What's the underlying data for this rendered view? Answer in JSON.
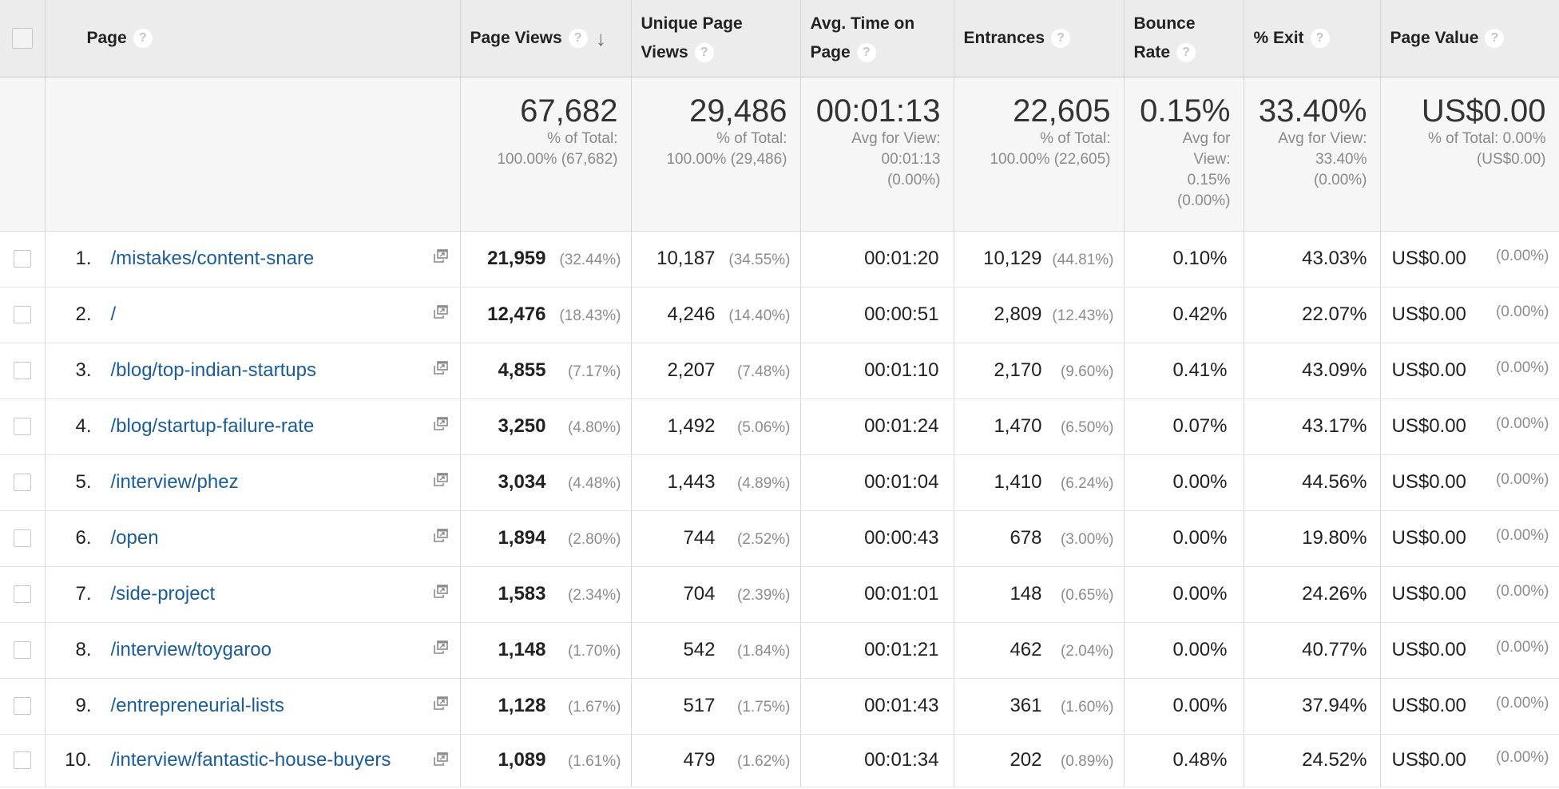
{
  "header": {
    "page": "Page",
    "page_views": "Page Views",
    "unique_page_views": "Unique Page Views",
    "avg_time_on_page": "Avg. Time on Page",
    "entrances": "Entrances",
    "bounce_rate": "Bounce Rate",
    "exit": "% Exit",
    "page_value": "Page Value",
    "help_icon_glyph": "?",
    "sort_arrow_glyph": "↓"
  },
  "totals": {
    "page_views": {
      "value": "67,682",
      "line1": "% of Total:",
      "line2": "100.00% (67,682)"
    },
    "unique_page_views": {
      "value": "29,486",
      "line1": "% of Total:",
      "line2": "100.00% (29,486)"
    },
    "avg_time_on_page": {
      "value": "00:01:13",
      "line1": "Avg for View:",
      "line2": "00:01:13",
      "line3": "(0.00%)"
    },
    "entrances": {
      "value": "22,605",
      "line1": "% of Total:",
      "line2": "100.00% (22,605)"
    },
    "bounce_rate": {
      "value": "0.15%",
      "line1": "Avg for",
      "line2": "View:",
      "line3": "0.15%",
      "line4": "(0.00%)"
    },
    "exit": {
      "value": "33.40%",
      "line1": "Avg for View:",
      "line2": "33.40%",
      "line3": "(0.00%)"
    },
    "page_value": {
      "value": "US$0.00",
      "line1": "% of Total: 0.00%",
      "line2": "(US$0.00)"
    }
  },
  "rows": [
    {
      "rank": "1.",
      "page": "/mistakes/content-snare",
      "pv": "21,959",
      "pv_pct": "(32.44%)",
      "upv": "10,187",
      "upv_pct": "(34.55%)",
      "avg": "00:01:20",
      "ent": "10,129",
      "ent_pct": "(44.81%)",
      "bounce": "0.10%",
      "exit": "43.03%",
      "value": "US$0.00",
      "value_pct": "(0.00%)"
    },
    {
      "rank": "2.",
      "page": "/",
      "pv": "12,476",
      "pv_pct": "(18.43%)",
      "upv": "4,246",
      "upv_pct": "(14.40%)",
      "avg": "00:00:51",
      "ent": "2,809",
      "ent_pct": "(12.43%)",
      "bounce": "0.42%",
      "exit": "22.07%",
      "value": "US$0.00",
      "value_pct": "(0.00%)"
    },
    {
      "rank": "3.",
      "page": "/blog/top-indian-startups",
      "pv": "4,855",
      "pv_pct": "(7.17%)",
      "upv": "2,207",
      "upv_pct": "(7.48%)",
      "avg": "00:01:10",
      "ent": "2,170",
      "ent_pct": "(9.60%)",
      "bounce": "0.41%",
      "exit": "43.09%",
      "value": "US$0.00",
      "value_pct": "(0.00%)"
    },
    {
      "rank": "4.",
      "page": "/blog/startup-failure-rate",
      "pv": "3,250",
      "pv_pct": "(4.80%)",
      "upv": "1,492",
      "upv_pct": "(5.06%)",
      "avg": "00:01:24",
      "ent": "1,470",
      "ent_pct": "(6.50%)",
      "bounce": "0.07%",
      "exit": "43.17%",
      "value": "US$0.00",
      "value_pct": "(0.00%)"
    },
    {
      "rank": "5.",
      "page": "/interview/phez",
      "pv": "3,034",
      "pv_pct": "(4.48%)",
      "upv": "1,443",
      "upv_pct": "(4.89%)",
      "avg": "00:01:04",
      "ent": "1,410",
      "ent_pct": "(6.24%)",
      "bounce": "0.00%",
      "exit": "44.56%",
      "value": "US$0.00",
      "value_pct": "(0.00%)"
    },
    {
      "rank": "6.",
      "page": "/open",
      "pv": "1,894",
      "pv_pct": "(2.80%)",
      "upv": "744",
      "upv_pct": "(2.52%)",
      "avg": "00:00:43",
      "ent": "678",
      "ent_pct": "(3.00%)",
      "bounce": "0.00%",
      "exit": "19.80%",
      "value": "US$0.00",
      "value_pct": "(0.00%)"
    },
    {
      "rank": "7.",
      "page": "/side-project",
      "pv": "1,583",
      "pv_pct": "(2.34%)",
      "upv": "704",
      "upv_pct": "(2.39%)",
      "avg": "00:01:01",
      "ent": "148",
      "ent_pct": "(0.65%)",
      "bounce": "0.00%",
      "exit": "24.26%",
      "value": "US$0.00",
      "value_pct": "(0.00%)"
    },
    {
      "rank": "8.",
      "page": "/interview/toygaroo",
      "pv": "1,148",
      "pv_pct": "(1.70%)",
      "upv": "542",
      "upv_pct": "(1.84%)",
      "avg": "00:01:21",
      "ent": "462",
      "ent_pct": "(2.04%)",
      "bounce": "0.00%",
      "exit": "40.77%",
      "value": "US$0.00",
      "value_pct": "(0.00%)"
    },
    {
      "rank": "9.",
      "page": "/entrepreneurial-lists",
      "pv": "1,128",
      "pv_pct": "(1.67%)",
      "upv": "517",
      "upv_pct": "(1.75%)",
      "avg": "00:01:43",
      "ent": "361",
      "ent_pct": "(1.60%)",
      "bounce": "0.00%",
      "exit": "37.94%",
      "value": "US$0.00",
      "value_pct": "(0.00%)"
    },
    {
      "rank": "10.",
      "page": "/interview/fantastic-house-buyers",
      "pv": "1,089",
      "pv_pct": "(1.61%)",
      "upv": "479",
      "upv_pct": "(1.62%)",
      "avg": "00:01:34",
      "ent": "202",
      "ent_pct": "(0.89%)",
      "bounce": "0.48%",
      "exit": "24.52%",
      "value": "US$0.00",
      "value_pct": "(0.00%)"
    }
  ],
  "colors": {
    "link": "#1a5c99",
    "header_bg": "#ececec",
    "totals_bg": "#f6f6f6"
  }
}
